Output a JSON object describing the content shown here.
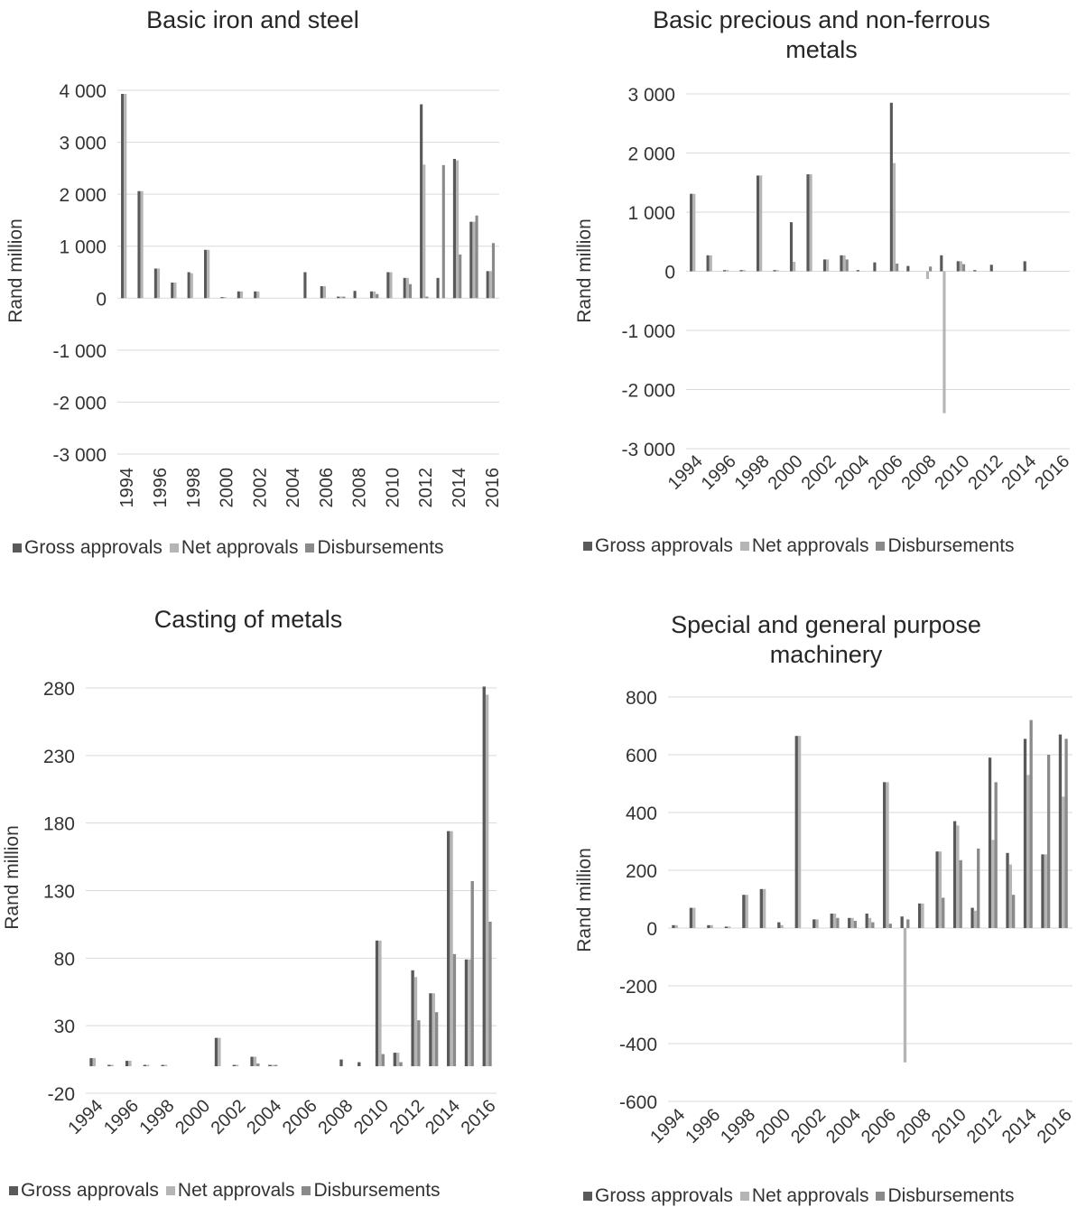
{
  "colors": {
    "gross": "#595959",
    "net": "#b5b5b5",
    "disb": "#8a8a8a",
    "grid": "#d9d9d9"
  },
  "legend": {
    "gross": "Gross approvals",
    "net": "Net approvals",
    "disb": "Disbursements"
  },
  "chart_data": [
    {
      "type": "bar",
      "title": "Basic iron and steel",
      "ylabel": "Rand million",
      "xlabel": "",
      "ylim": [
        -3000,
        4000
      ],
      "yticks": [
        4000,
        3000,
        2000,
        1000,
        0,
        -1000,
        -2000,
        -3000
      ],
      "ytick_labels": [
        "4 000",
        "3 000",
        "2 000",
        "1 000",
        "0",
        "-1 000",
        "-2 000",
        "-3 000"
      ],
      "categories": [
        "1994",
        "1995",
        "1996",
        "1997",
        "1998",
        "1999",
        "2000",
        "2001",
        "2002",
        "2003",
        "2004",
        "2005",
        "2006",
        "2007",
        "2008",
        "2009",
        "2010",
        "2011",
        "2012",
        "2013",
        "2014",
        "2015",
        "2016"
      ],
      "xtick_labels": [
        "1994",
        "",
        "1996",
        "",
        "1998",
        "",
        "2000",
        "",
        "2002",
        "",
        "2004",
        "",
        "2006",
        "",
        "2008",
        "",
        "2010",
        "",
        "2012",
        "",
        "2014",
        "",
        "2016"
      ],
      "series": [
        {
          "name": "Gross approvals",
          "values": [
            3930,
            2060,
            570,
            300,
            500,
            930,
            20,
            130,
            130,
            0,
            0,
            500,
            230,
            30,
            140,
            130,
            500,
            390,
            3730,
            390,
            2680,
            1470,
            520
          ]
        },
        {
          "name": "Net approvals",
          "values": [
            3930,
            2060,
            570,
            300,
            480,
            930,
            20,
            130,
            130,
            0,
            0,
            0,
            230,
            30,
            0,
            130,
            500,
            390,
            2570,
            0,
            2650,
            1470,
            520
          ]
        },
        {
          "name": "Disbursements",
          "values": [
            0,
            0,
            0,
            0,
            0,
            0,
            0,
            0,
            0,
            0,
            0,
            0,
            0,
            30,
            0,
            80,
            0,
            270,
            30,
            2560,
            840,
            1590,
            1060
          ]
        }
      ]
    },
    {
      "type": "bar",
      "title": "Basic precious and non-ferrous metals",
      "ylabel": "Rand million",
      "xlabel": "",
      "ylim": [
        -3000,
        3000
      ],
      "yticks": [
        3000,
        2000,
        1000,
        0,
        -1000,
        -2000,
        -3000
      ],
      "ytick_labels": [
        "3 000",
        "2 000",
        "1 000",
        "0",
        "-1 000",
        "-2 000",
        "-3 000"
      ],
      "categories": [
        "1994",
        "1995",
        "1996",
        "1997",
        "1998",
        "1999",
        "2000",
        "2001",
        "2002",
        "2003",
        "2004",
        "2005",
        "2006",
        "2007",
        "2008",
        "2009",
        "2010",
        "2011",
        "2012",
        "2013",
        "2014",
        "2015",
        "2016"
      ],
      "xtick_labels": [
        "1994",
        "",
        "1996",
        "",
        "1998",
        "",
        "2000",
        "",
        "2002",
        "",
        "2004",
        "",
        "2006",
        "",
        "2008",
        "",
        "2010",
        "",
        "2012",
        "",
        "2014",
        "",
        "2016"
      ],
      "series": [
        {
          "name": "Gross approvals",
          "values": [
            1310,
            270,
            20,
            20,
            1620,
            20,
            830,
            1640,
            200,
            270,
            20,
            150,
            2850,
            90,
            0,
            270,
            170,
            20,
            110,
            0,
            170,
            0,
            0
          ]
        },
        {
          "name": "Net approvals",
          "values": [
            1310,
            270,
            20,
            20,
            1620,
            20,
            160,
            1640,
            200,
            270,
            0,
            0,
            1830,
            0,
            -130,
            -2400,
            170,
            0,
            0,
            0,
            0,
            0,
            0
          ]
        },
        {
          "name": "Disbursements",
          "values": [
            0,
            0,
            0,
            0,
            0,
            0,
            0,
            0,
            0,
            200,
            0,
            0,
            130,
            0,
            80,
            0,
            120,
            0,
            0,
            0,
            0,
            0,
            0
          ]
        }
      ]
    },
    {
      "type": "bar",
      "title": "Casting of metals",
      "ylabel": "Rand million",
      "xlabel": "",
      "ylim": [
        -20,
        280
      ],
      "yticks": [
        280,
        230,
        180,
        130,
        80,
        30,
        -20
      ],
      "ytick_labels": [
        "280",
        "230",
        "180",
        "130",
        "80",
        "30",
        "-20"
      ],
      "categories": [
        "1994",
        "1995",
        "1996",
        "1997",
        "1998",
        "1999",
        "2000",
        "2001",
        "2002",
        "2003",
        "2004",
        "2005",
        "2006",
        "2007",
        "2008",
        "2009",
        "2010",
        "2011",
        "2012",
        "2013",
        "2014",
        "2015",
        "2016"
      ],
      "xtick_labels": [
        "1994",
        "",
        "1996",
        "",
        "1998",
        "",
        "2000",
        "",
        "2002",
        "",
        "2004",
        "",
        "2006",
        "",
        "2008",
        "",
        "2010",
        "",
        "2012",
        "",
        "2014",
        "",
        "2016"
      ],
      "series": [
        {
          "name": "Gross approvals",
          "values": [
            6,
            1,
            4,
            1,
            1,
            0,
            0,
            21,
            1,
            7,
            1,
            0,
            0,
            0,
            5,
            3,
            93,
            10,
            71,
            54,
            174,
            79,
            281
          ]
        },
        {
          "name": "Net approvals",
          "values": [
            6,
            1,
            4,
            1,
            1,
            0,
            0,
            21,
            1,
            7,
            1,
            0,
            0,
            0,
            0,
            0,
            93,
            10,
            66,
            54,
            174,
            79,
            275
          ]
        },
        {
          "name": "Disbursements",
          "values": [
            0,
            0,
            0,
            0,
            0,
            0,
            0,
            0,
            0,
            2,
            1,
            0,
            0,
            0,
            0,
            0,
            9,
            3,
            34,
            40,
            83,
            137,
            107
          ]
        }
      ]
    },
    {
      "type": "bar",
      "title": "Special and general purpose machinery",
      "ylabel": "Rand million",
      "xlabel": "",
      "ylim": [
        -600,
        800
      ],
      "yticks": [
        800,
        600,
        400,
        200,
        0,
        -200,
        -400,
        -600
      ],
      "ytick_labels": [
        "800",
        "600",
        "400",
        "200",
        "0",
        "-200",
        "-400",
        "-600"
      ],
      "categories": [
        "1994",
        "1995",
        "1996",
        "1997",
        "1998",
        "1999",
        "2000",
        "2001",
        "2002",
        "2003",
        "2004",
        "2005",
        "2006",
        "2007",
        "2008",
        "2009",
        "2010",
        "2011",
        "2012",
        "2013",
        "2014",
        "2015",
        "2016"
      ],
      "xtick_labels": [
        "1994",
        "",
        "1996",
        "",
        "1998",
        "",
        "2000",
        "",
        "2002",
        "",
        "2004",
        "",
        "2006",
        "",
        "2008",
        "",
        "2010",
        "",
        "2012",
        "",
        "2014",
        "",
        "2016"
      ],
      "series": [
        {
          "name": "Gross approvals",
          "values": [
            10,
            70,
            10,
            5,
            115,
            135,
            20,
            665,
            30,
            50,
            35,
            50,
            505,
            40,
            85,
            265,
            370,
            70,
            590,
            260,
            655,
            255,
            670
          ]
        },
        {
          "name": "Net approvals",
          "values": [
            10,
            70,
            10,
            5,
            115,
            135,
            10,
            665,
            30,
            50,
            35,
            35,
            505,
            -465,
            85,
            265,
            355,
            60,
            305,
            220,
            530,
            255,
            455
          ]
        },
        {
          "name": "Disbursements",
          "values": [
            0,
            0,
            0,
            0,
            0,
            0,
            0,
            0,
            0,
            35,
            25,
            20,
            15,
            30,
            0,
            105,
            235,
            275,
            505,
            115,
            720,
            600,
            655
          ]
        }
      ]
    }
  ]
}
